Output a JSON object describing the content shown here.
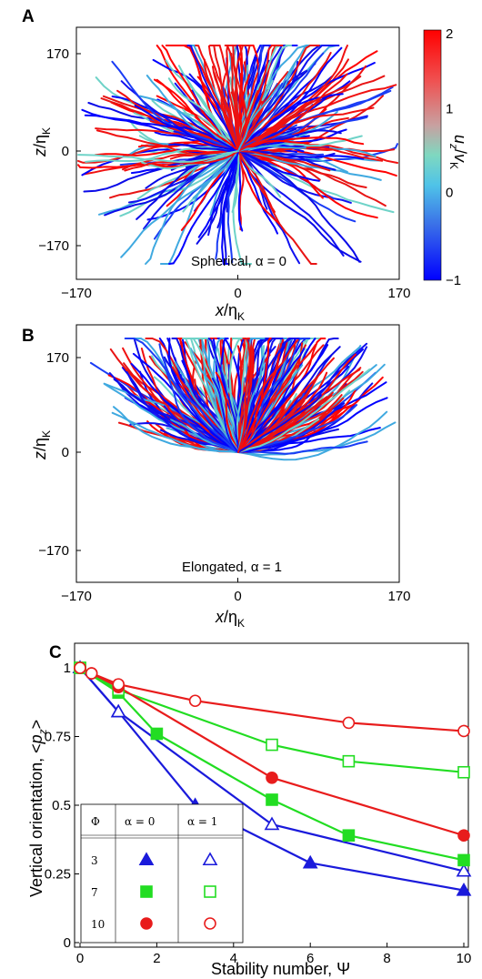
{
  "chart_data": [
    {
      "panel": "A",
      "type": "scatter",
      "title": "",
      "annotation": "Spherical, α = 0",
      "xlabel": "x/ηK",
      "ylabel": "z/ηK",
      "xlim": [
        -170,
        170
      ],
      "ylim": [
        -215,
        215
      ],
      "xticks": [
        "−170",
        "0",
        "170"
      ],
      "yticks": [
        "170",
        "0",
        "−170"
      ],
      "colorbar": {
        "label": "uz/vK",
        "range": [
          -1,
          2
        ],
        "ticks": [
          "2",
          "1",
          "0",
          "−1"
        ],
        "colors": [
          "#0000ff",
          "#36b6e6",
          "#9fd6b0",
          "#ff0000"
        ]
      },
      "trajectories": {
        "count": 260,
        "origin": [
          0,
          0
        ],
        "description_shape": "isotropic spread, most in upper half"
      }
    },
    {
      "panel": "B",
      "type": "scatter",
      "title": "",
      "annotation": "Elongated, α = 1",
      "xlabel": "x/ηK",
      "ylabel": "z/ηK",
      "xlim": [
        -170,
        170
      ],
      "ylim": [
        -215,
        215
      ],
      "xticks": [
        "−170",
        "0",
        "170"
      ],
      "yticks": [
        "170",
        "0",
        "−170"
      ],
      "trajectories": {
        "count": 260,
        "origin": [
          0,
          0
        ],
        "description_shape": "strongly upward fan"
      }
    },
    {
      "panel": "C",
      "type": "line",
      "title": "",
      "xlabel": "Stability number, Ψ",
      "ylabel": "Vertical orientation, <pz>",
      "xlim": [
        0,
        10
      ],
      "ylim": [
        0,
        1
      ],
      "xticks": [
        0,
        2,
        4,
        6,
        8,
        10
      ],
      "yticks": [
        "0",
        "0.25",
        "0.5",
        "0.75",
        "1"
      ],
      "series": [
        {
          "phi": 3,
          "alpha": 0,
          "marker": "triangle-filled",
          "color": "#1a1adb",
          "x": [
            0,
            1,
            3,
            6,
            10
          ],
          "y": [
            1.0,
            0.84,
            0.5,
            0.29,
            0.19
          ]
        },
        {
          "phi": 3,
          "alpha": 1,
          "marker": "triangle-open",
          "color": "#1a1adb",
          "x": [
            0,
            1,
            5,
            10
          ],
          "y": [
            1.0,
            0.84,
            0.43,
            0.26
          ]
        },
        {
          "phi": 7,
          "alpha": 0,
          "marker": "square-filled",
          "color": "#22dd22",
          "x": [
            0,
            1,
            2,
            5,
            7,
            10
          ],
          "y": [
            1.0,
            0.91,
            0.76,
            0.52,
            0.39,
            0.3
          ]
        },
        {
          "phi": 7,
          "alpha": 1,
          "marker": "square-open",
          "color": "#22dd22",
          "x": [
            0,
            1,
            5,
            7,
            10
          ],
          "y": [
            1.0,
            0.92,
            0.72,
            0.66,
            0.62
          ]
        },
        {
          "phi": 10,
          "alpha": 0,
          "marker": "circle-filled",
          "color": "#e81c1c",
          "x": [
            0,
            0.3,
            1,
            5,
            10
          ],
          "y": [
            1.0,
            0.98,
            0.93,
            0.6,
            0.39
          ]
        },
        {
          "phi": 10,
          "alpha": 1,
          "marker": "circle-open",
          "color": "#e81c1c",
          "x": [
            0,
            0.3,
            1,
            3,
            7,
            10
          ],
          "y": [
            1.0,
            0.98,
            0.94,
            0.88,
            0.8,
            0.77
          ]
        }
      ],
      "legend": {
        "placement": "bottom-left",
        "headers": [
          "Φ",
          "α = 0",
          "α = 1"
        ],
        "rows": [
          "3",
          "7",
          "10"
        ]
      }
    }
  ]
}
